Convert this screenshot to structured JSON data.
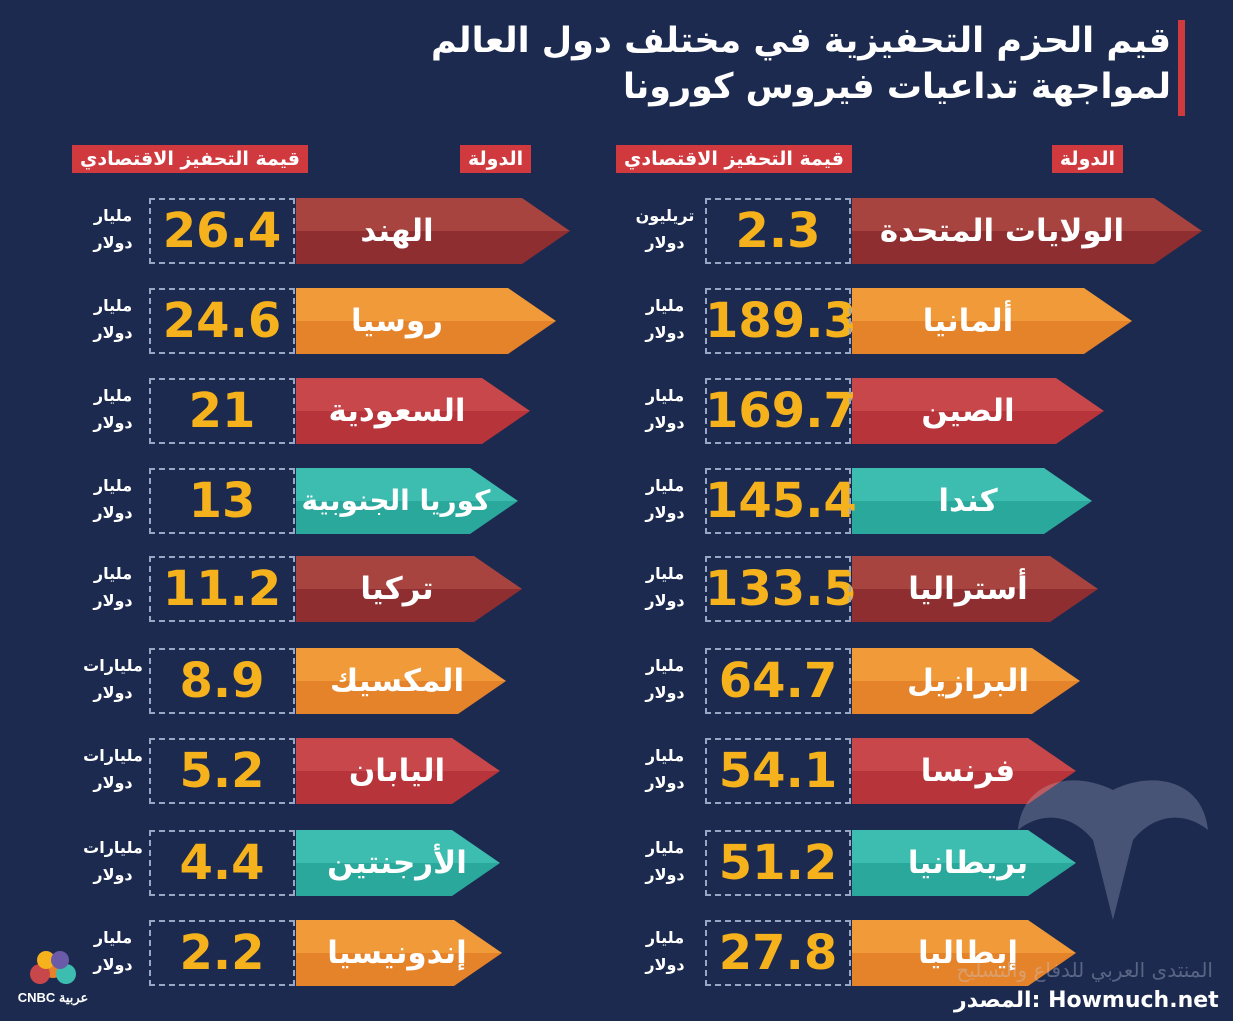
{
  "title": {
    "line1": "قيم الحزم التحفيزية في مختلف دول العالم",
    "line2": "لمواجهة تداعيات فيروس كورونا"
  },
  "headers": {
    "country": "الدولة",
    "value": "قيمة التحفيز الاقتصادي"
  },
  "right_column": [
    {
      "country": "الولايات المتحدة",
      "value": "2.3",
      "unit1": "تريليون",
      "unit2": "دولار",
      "color": "#a8443f"
    },
    {
      "country": "ألمانيا",
      "value": "189.3",
      "unit1": "مليار",
      "unit2": "دولار",
      "color": "#f09a3a"
    },
    {
      "country": "الصين",
      "value": "169.7",
      "unit1": "مليار",
      "unit2": "دولار",
      "color": "#c8474b"
    },
    {
      "country": "كندا",
      "value": "145.4",
      "unit1": "مليار",
      "unit2": "دولار",
      "color": "#3dbdb0"
    },
    {
      "country": "أستراليا",
      "value": "133.5",
      "unit1": "مليار",
      "unit2": "دولار",
      "color": "#a8443f"
    },
    {
      "country": "البرازيل",
      "value": "64.7",
      "unit1": "مليار",
      "unit2": "دولار",
      "color": "#f09a3a"
    },
    {
      "country": "فرنسا",
      "value": "54.1",
      "unit1": "مليار",
      "unit2": "دولار",
      "color": "#c8474b"
    },
    {
      "country": "بريطانيا",
      "value": "51.2",
      "unit1": "مليار",
      "unit2": "دولار",
      "color": "#3dbdb0"
    },
    {
      "country": "إيطاليا",
      "value": "27.8",
      "unit1": "مليار",
      "unit2": "دولار",
      "color": "#f09a3a"
    }
  ],
  "left_column": [
    {
      "country": "الهند",
      "value": "26.4",
      "unit1": "مليار",
      "unit2": "دولار",
      "color": "#a8443f"
    },
    {
      "country": "روسيا",
      "value": "24.6",
      "unit1": "مليار",
      "unit2": "دولار",
      "color": "#f09a3a"
    },
    {
      "country": "السعودية",
      "value": "21",
      "unit1": "مليار",
      "unit2": "دولار",
      "color": "#c8474b"
    },
    {
      "country": "كوريا الجنوبية",
      "value": "13",
      "unit1": "مليار",
      "unit2": "دولار",
      "color": "#3dbdb0"
    },
    {
      "country": "تركيا",
      "value": "11.2",
      "unit1": "مليار",
      "unit2": "دولار",
      "color": "#a8443f"
    },
    {
      "country": "المكسيك",
      "value": "8.9",
      "unit1": "مليارات",
      "unit2": "دولار",
      "color": "#f09a3a"
    },
    {
      "country": "اليابان",
      "value": "5.2",
      "unit1": "مليارات",
      "unit2": "دولار",
      "color": "#c8474b"
    },
    {
      "country": "الأرجنتين",
      "value": "4.4",
      "unit1": "مليارات",
      "unit2": "دولار",
      "color": "#3dbdb0"
    },
    {
      "country": "إندونيسيا",
      "value": "2.2",
      "unit1": "مليار",
      "unit2": "دولار",
      "color": "#f09a3a"
    }
  ],
  "source": "المصدر: Howmuch.net",
  "watermark_text": "المنتدى العربي للدفاع والتسليح",
  "logo_text": "CNBC عربية"
}
